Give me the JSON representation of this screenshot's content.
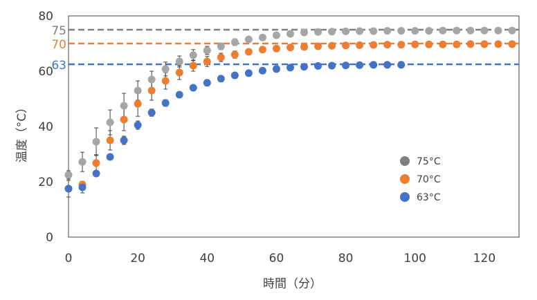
{
  "chart_data": {
    "type": "scatter",
    "title": "",
    "xlabel": "時間（分）",
    "ylabel": "温度（°C）",
    "xlim": [
      0,
      130
    ],
    "ylim": [
      0,
      80
    ],
    "xticks": [
      0,
      20,
      40,
      60,
      80,
      100,
      120
    ],
    "yticks": [
      0,
      20,
      40,
      60,
      80
    ],
    "grid": false,
    "legend_position": "lower-right",
    "reference_lines": [
      {
        "label": "75",
        "value": 75,
        "color": "#7f7f7f"
      },
      {
        "label": "70",
        "value": 70,
        "color": "#ed7d31"
      },
      {
        "label": "63",
        "value": 62.5,
        "color": "#4472c4"
      }
    ],
    "series": [
      {
        "name": "75°C",
        "color": "#a5a5a5",
        "legend_color": "#7f7f7f",
        "x": [
          0,
          4,
          8,
          12,
          16,
          20,
          24,
          28,
          32,
          36,
          40,
          44,
          48,
          52,
          56,
          60,
          64,
          68,
          72,
          76,
          80,
          84,
          88,
          92,
          96,
          100,
          104,
          108,
          112,
          116,
          120,
          124,
          128
        ],
        "y": [
          22.5,
          27.2,
          34.5,
          41.5,
          47.5,
          53,
          57,
          60.8,
          63.5,
          65.8,
          67.5,
          69,
          70.5,
          71.5,
          72.2,
          73,
          73.5,
          74,
          74.2,
          74.3,
          74.4,
          74.5,
          74.5,
          74.6,
          74.6,
          74.6,
          74.6,
          74.7,
          74.7,
          74.7,
          74.7,
          74.7,
          74.7
        ],
        "err": [
          1.5,
          3.5,
          5,
          4.5,
          4.5,
          3.5,
          3,
          2.5,
          2,
          2,
          1.5,
          1.2,
          1.2,
          0,
          0,
          0,
          0,
          0,
          0,
          0,
          0,
          0,
          0,
          0,
          0,
          0,
          0,
          0,
          0,
          0,
          0,
          0,
          0
        ]
      },
      {
        "name": "70°C",
        "color": "#ed7d31",
        "legend_color": "#ed7d31",
        "x": [
          0,
          4,
          8,
          12,
          16,
          20,
          24,
          28,
          32,
          36,
          40,
          44,
          48,
          52,
          56,
          60,
          64,
          68,
          72,
          76,
          80,
          84,
          88,
          92,
          96,
          100,
          104,
          108,
          112,
          116,
          120,
          124,
          128
        ],
        "y": [
          17.5,
          19,
          26.8,
          35,
          42.5,
          48.2,
          53,
          56.5,
          59.5,
          62,
          63.5,
          65,
          66,
          67,
          67.8,
          68.2,
          68.6,
          68.8,
          69,
          69.2,
          69.3,
          69.4,
          69.5,
          69.6,
          69.6,
          69.7,
          69.7,
          69.7,
          69.7,
          69.8,
          69.8,
          69.8,
          69.8
        ],
        "err": [
          0.8,
          1.2,
          3,
          3.5,
          4,
          4.5,
          3.5,
          3,
          2.5,
          2,
          1.8,
          1.5,
          1.3,
          1,
          0,
          0,
          0,
          0,
          0,
          0,
          0,
          0,
          0,
          0,
          0,
          0,
          0,
          0,
          0,
          0,
          0,
          0,
          0
        ]
      },
      {
        "name": "63°C",
        "color": "#4472c4",
        "legend_color": "#4472c4",
        "x": [
          0,
          4,
          8,
          12,
          16,
          20,
          24,
          28,
          32,
          36,
          40,
          44,
          48,
          52,
          56,
          60,
          64,
          68,
          72,
          76,
          80,
          84,
          88,
          92,
          96
        ],
        "y": [
          17.5,
          18,
          23,
          29,
          35,
          40.5,
          45,
          48.5,
          51.5,
          54,
          55.8,
          57.3,
          58.5,
          59.3,
          60.2,
          60.8,
          61.3,
          61.6,
          61.9,
          62,
          62.1,
          62.2,
          62.3,
          62.3,
          62.3
        ],
        "err": [
          3,
          2,
          1,
          0.8,
          1.5,
          1.5,
          1.3,
          1.2,
          1,
          0.8,
          0.6,
          0,
          0,
          0,
          0,
          0,
          0,
          0,
          0,
          0,
          0,
          0,
          0,
          0,
          0
        ]
      }
    ]
  }
}
